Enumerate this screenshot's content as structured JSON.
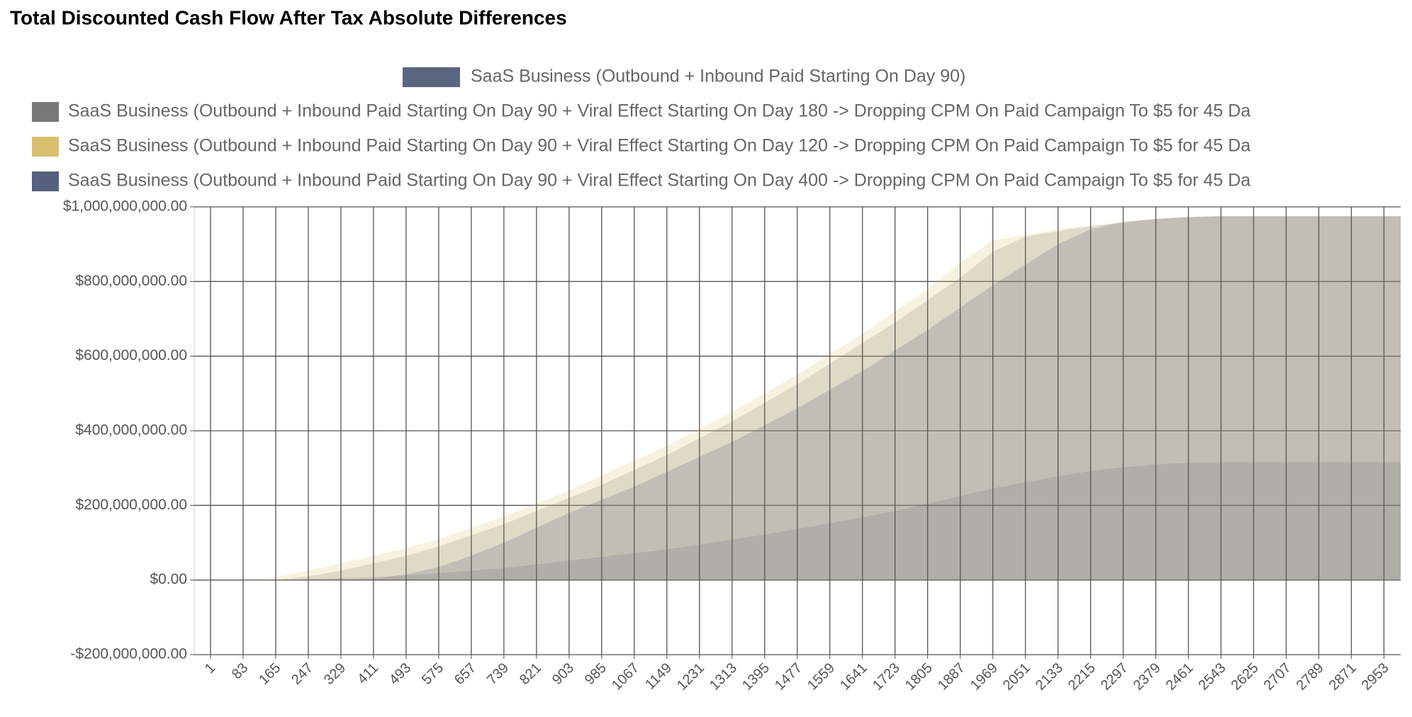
{
  "chart_data": {
    "type": "area",
    "title": "Total Discounted Cash Flow After Tax Absolute Differences",
    "x": [
      1,
      83,
      165,
      247,
      329,
      411,
      493,
      575,
      657,
      739,
      821,
      903,
      985,
      1067,
      1149,
      1231,
      1313,
      1395,
      1477,
      1559,
      1641,
      1723,
      1805,
      1887,
      1969,
      2051,
      2133,
      2215,
      2297,
      2379,
      2461,
      2543,
      2625,
      2707,
      2789,
      2871,
      2953
    ],
    "xlim": [
      -40,
      2995
    ],
    "xticks": [
      1,
      83,
      165,
      247,
      329,
      411,
      493,
      575,
      657,
      739,
      821,
      903,
      985,
      1067,
      1149,
      1231,
      1313,
      1395,
      1477,
      1559,
      1641,
      1723,
      1805,
      1887,
      1969,
      2051,
      2133,
      2215,
      2297,
      2379,
      2461,
      2543,
      2625,
      2707,
      2789,
      2871,
      2953
    ],
    "ylim": [
      -200000000,
      1000000000
    ],
    "yticks": [
      {
        "value": -200000000,
        "label": "-$200,000,000.00"
      },
      {
        "value": 0,
        "label": "$0.00"
      },
      {
        "value": 200000000,
        "label": "$200,000,000.00"
      },
      {
        "value": 400000000,
        "label": "$400,000,000.00"
      },
      {
        "value": 600000000,
        "label": "$600,000,000.00"
      },
      {
        "value": 800000000,
        "label": "$800,000,000.00"
      },
      {
        "value": 1000000000,
        "label": "$1,000,000,000.00"
      }
    ],
    "grid": true,
    "series": [
      {
        "name": "SaaS Business (Outbound + Inbound Paid Starting On Day 90)",
        "color": "#5a6580",
        "values": [
          0,
          0,
          0,
          3000000,
          5000000,
          8000000,
          12000000,
          18000000,
          25000000,
          32000000,
          42000000,
          52000000,
          62000000,
          72000000,
          82000000,
          95000000,
          108000000,
          122000000,
          137000000,
          152000000,
          168000000,
          185000000,
          205000000,
          225000000,
          245000000,
          262000000,
          278000000,
          292000000,
          302000000,
          310000000,
          314000000,
          316000000,
          316000000,
          316000000,
          316000000,
          316000000,
          316000000
        ]
      },
      {
        "name": "SaaS Business (Outbound + Inbound Paid Starting On Day 90 + Viral Effect Starting On Day 180 -> Dropping CPM On Paid Campaign To $5 for 45 Da",
        "color": "#777777",
        "values": [
          0,
          0,
          0,
          10000000,
          25000000,
          45000000,
          65000000,
          90000000,
          120000000,
          150000000,
          185000000,
          220000000,
          255000000,
          295000000,
          335000000,
          380000000,
          425000000,
          475000000,
          525000000,
          580000000,
          635000000,
          690000000,
          750000000,
          810000000,
          880000000,
          920000000,
          935000000,
          948000000,
          958000000,
          967000000,
          972000000,
          975000000,
          975000000,
          975000000,
          975000000,
          975000000,
          975000000
        ]
      },
      {
        "name": "SaaS Business (Outbound + Inbound Paid Starting On Day 90 + Viral Effect Starting On Day 120 -> Dropping CPM On Paid Campaign To $5 for 45 Da",
        "color": "#d9c06e",
        "values": [
          0,
          0,
          8000000,
          25000000,
          45000000,
          65000000,
          85000000,
          110000000,
          140000000,
          170000000,
          205000000,
          240000000,
          280000000,
          320000000,
          360000000,
          405000000,
          450000000,
          500000000,
          550000000,
          605000000,
          660000000,
          720000000,
          780000000,
          850000000,
          910000000,
          925000000,
          940000000,
          950000000,
          960000000,
          968000000,
          973000000,
          975000000,
          975000000,
          975000000,
          975000000,
          975000000,
          975000000
        ]
      },
      {
        "name": "SaaS Business (Outbound + Inbound Paid Starting On Day 90 + Viral Effect Starting On Day 400 -> Dropping CPM On Paid Campaign To $5 for 45 Da",
        "color": "#55617d",
        "values": [
          0,
          0,
          0,
          0,
          0,
          3000000,
          15000000,
          35000000,
          65000000,
          100000000,
          140000000,
          180000000,
          215000000,
          250000000,
          290000000,
          330000000,
          370000000,
          415000000,
          460000000,
          510000000,
          560000000,
          615000000,
          670000000,
          730000000,
          790000000,
          845000000,
          900000000,
          940000000,
          960000000,
          968000000,
          973000000,
          975000000,
          975000000,
          975000000,
          975000000,
          975000000,
          975000000
        ]
      }
    ]
  }
}
